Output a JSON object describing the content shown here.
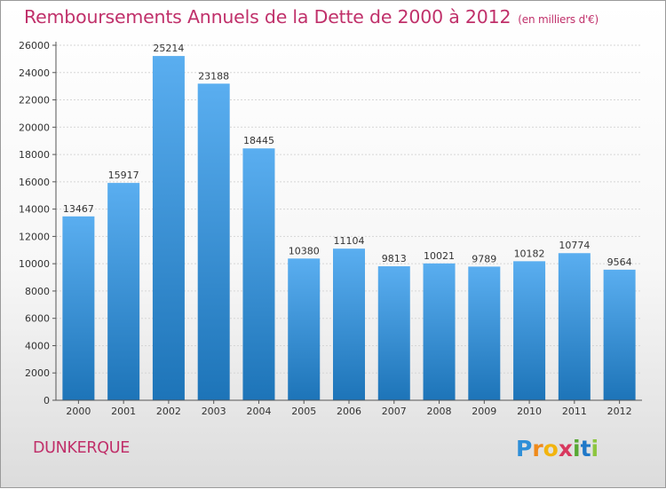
{
  "header": {
    "title": "Remboursements Annuels de la Dette de 2000 à 2012",
    "subtitle": "(en milliers d'€)"
  },
  "footer": {
    "city": "DUNKERQUE",
    "logo_text": "Proxiti"
  },
  "colors": {
    "title": "#c0306a",
    "bar_top": "#5aaef0",
    "bar_bottom": "#1d74b8"
  },
  "chart_data": {
    "type": "bar",
    "title": "Remboursements Annuels de la Dette de 2000 à 2012",
    "subtitle": "(en milliers d'€)",
    "categories": [
      "2000",
      "2001",
      "2002",
      "2003",
      "2004",
      "2005",
      "2006",
      "2007",
      "2008",
      "2009",
      "2010",
      "2011",
      "2012"
    ],
    "values": [
      13467,
      15917,
      25214,
      23188,
      18445,
      10380,
      11104,
      9813,
      10021,
      9789,
      10182,
      10774,
      9564
    ],
    "ylim": [
      0,
      26000
    ],
    "yticks": [
      0,
      2000,
      4000,
      6000,
      8000,
      10000,
      12000,
      14000,
      16000,
      18000,
      20000,
      22000,
      24000,
      26000
    ],
    "grid": true,
    "data_labels": true,
    "legend": "none"
  }
}
